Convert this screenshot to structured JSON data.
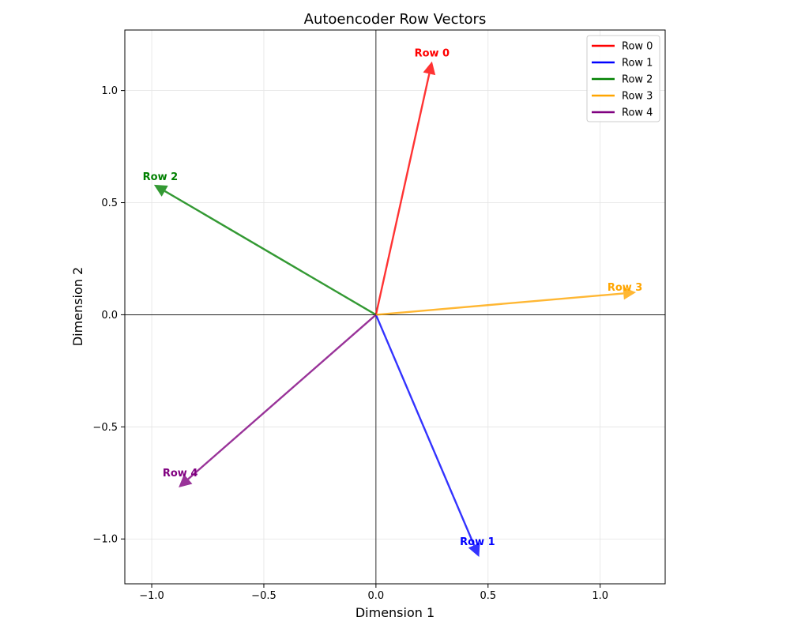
{
  "chart_data": {
    "type": "quiver",
    "title": "Autoencoder Row Vectors",
    "xlabel": "Dimension 1",
    "ylabel": "Dimension 2",
    "xlim": [
      -1.12,
      1.29
    ],
    "ylim": [
      -1.2,
      1.27
    ],
    "xticks": [
      -1.0,
      -0.5,
      0.0,
      0.5,
      1.0
    ],
    "xtick_labels": [
      "−1.0",
      "−0.5",
      "0.0",
      "0.5",
      "1.0"
    ],
    "yticks": [
      -1.0,
      -0.5,
      0.0,
      0.5,
      1.0
    ],
    "ytick_labels": [
      "−1.0",
      "−0.5",
      "0.0",
      "0.5",
      "1.0"
    ],
    "grid": true,
    "legend_position": "top-right",
    "series": [
      {
        "name": "Row 0",
        "label": "Row 0",
        "color": "#ff0000",
        "x": 0.25,
        "y": 1.13
      },
      {
        "name": "Row 1",
        "label": "Row 1",
        "color": "#0000ff",
        "x": 0.46,
        "y": -1.08
      },
      {
        "name": "Row 2",
        "label": "Row 2",
        "color": "#008000",
        "x": -0.99,
        "y": 0.58
      },
      {
        "name": "Row 3",
        "label": "Row 3",
        "color": "#ffa500",
        "x": 1.16,
        "y": 0.1
      },
      {
        "name": "Row 4",
        "label": "Row 4",
        "color": "#800080",
        "x": -0.88,
        "y": -0.77
      }
    ]
  }
}
